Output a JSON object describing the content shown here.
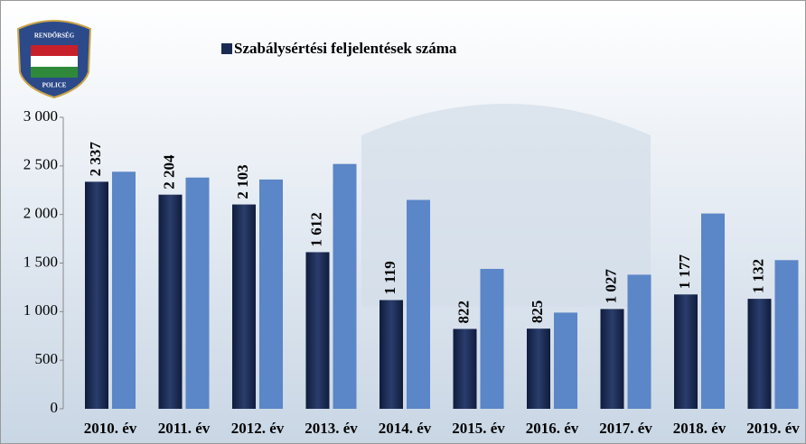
{
  "logo": {
    "top": "RENDŐRSÉG",
    "bottom": "POLICE"
  },
  "chart_data": {
    "type": "bar",
    "categories": [
      "2010. év",
      "2011. év",
      "2012. év",
      "2013. év",
      "2014. év",
      "2015. év",
      "2016. év",
      "2017. év",
      "2018. év",
      "2019. év"
    ],
    "series": [
      {
        "name": "Szabálysértési feljelentések száma",
        "color": "#1a2a52",
        "values": [
          2337,
          2204,
          2103,
          1612,
          1119,
          822,
          825,
          1027,
          1177,
          1132
        ],
        "value_labels": [
          "2 337",
          "2 204",
          "2 103",
          "1 612",
          "1 119",
          "822",
          "825",
          "1 027",
          "1 177",
          "1 132"
        ]
      },
      {
        "color": "#5b86c7",
        "values": [
          2440,
          2380,
          2360,
          2520,
          2150,
          1440,
          990,
          1380,
          2010,
          1530
        ]
      }
    ],
    "ylim": [
      0,
      3000
    ],
    "yticks": [
      0,
      500,
      {
        "value": 1000,
        "label": "1 000"
      },
      {
        "value": 1500,
        "label": "1 500"
      },
      {
        "value": 2000,
        "label": "2 000"
      },
      {
        "value": 2500,
        "label": "2 500"
      },
      {
        "value": 3000,
        "label": "3 000"
      }
    ],
    "legend": "top"
  }
}
